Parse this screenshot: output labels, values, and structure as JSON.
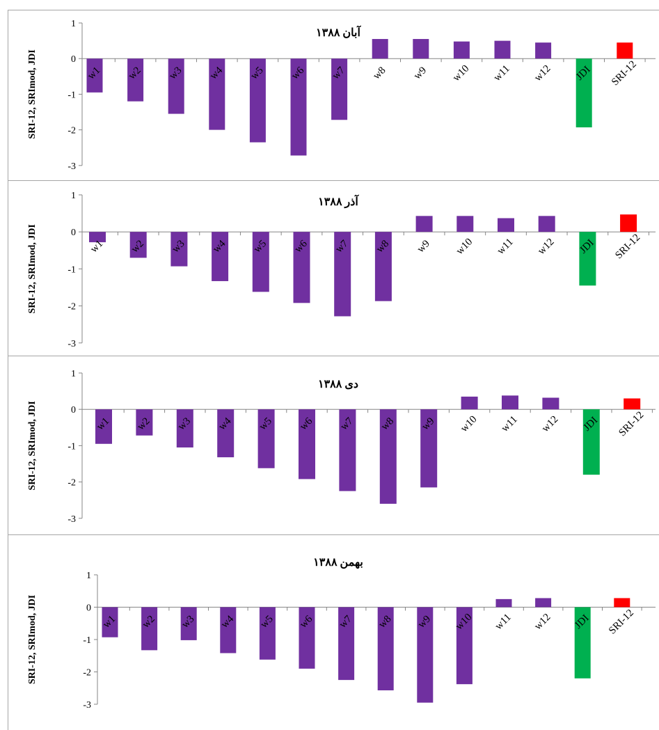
{
  "colors": {
    "w": "#7030a0",
    "JDI": "#00b050",
    "SRI-12": "#ff0000",
    "axis": "#868686"
  },
  "chart_data": [
    {
      "type": "bar",
      "title": "آبان ۱۳۸۸",
      "ylabel": "SRI-12, SRImod, JDI",
      "ylim": [
        -3,
        1
      ],
      "yticks": [
        "1",
        "0",
        "-1",
        "-2",
        "-3"
      ],
      "categories": [
        "w1",
        "w2",
        "w3",
        "w4",
        "w5",
        "w6",
        "w7",
        "w8",
        "w9",
        "w10",
        "w11",
        "w12",
        "JDI",
        "SRI-12"
      ],
      "values": [
        -0.95,
        -1.2,
        -1.55,
        -2.0,
        -2.35,
        -2.72,
        -1.72,
        0.55,
        0.55,
        0.48,
        0.5,
        0.45,
        -1.93,
        0.45
      ]
    },
    {
      "type": "bar",
      "title": "آذر ۱۳۸۸",
      "ylabel": "SRI-12, SRImod, JDI",
      "ylim": [
        -3,
        1
      ],
      "yticks": [
        "1",
        "0",
        "-1",
        "-2",
        "-3"
      ],
      "categories": [
        "w1",
        "w2",
        "w3",
        "w4",
        "w5",
        "w6",
        "w7",
        "w8",
        "w9",
        "w10",
        "w11",
        "w12",
        "JDI",
        "SRI-12"
      ],
      "values": [
        -0.28,
        -0.7,
        -0.93,
        -1.33,
        -1.62,
        -1.92,
        -2.28,
        -1.87,
        0.43,
        0.43,
        0.37,
        0.43,
        -1.45,
        0.47
      ]
    },
    {
      "type": "bar",
      "title": "دی ۱۳۸۸",
      "ylabel": "SRI-12, SRImod, JDI",
      "ylim": [
        -3,
        1
      ],
      "yticks": [
        "1",
        "0",
        "-1",
        "-2",
        "-3"
      ],
      "categories": [
        "w1",
        "w2",
        "w3",
        "w4",
        "w5",
        "w6",
        "w7",
        "w8",
        "w9",
        "w10",
        "w11",
        "w12",
        "JDI",
        "SRI-12"
      ],
      "values": [
        -0.95,
        -0.72,
        -1.05,
        -1.32,
        -1.62,
        -1.92,
        -2.25,
        -2.6,
        -2.15,
        0.35,
        0.38,
        0.32,
        -1.8,
        0.3
      ]
    },
    {
      "type": "bar",
      "title": "بهمن ۱۳۸۸",
      "ylabel": "SRI-12, SRImod, JDI",
      "ylim": [
        -3,
        1
      ],
      "yticks": [
        "1",
        "0",
        "-1",
        "-2",
        "-3"
      ],
      "categories": [
        "w1",
        "w2",
        "w3",
        "w4",
        "w5",
        "w6",
        "w7",
        "w8",
        "w9",
        "w10",
        "w11",
        "w12",
        "JDI",
        "SRI-12"
      ],
      "values": [
        -0.93,
        -1.33,
        -1.02,
        -1.42,
        -1.62,
        -1.9,
        -2.25,
        -2.57,
        -2.95,
        -2.38,
        0.25,
        0.28,
        -2.2,
        0.28
      ]
    }
  ]
}
